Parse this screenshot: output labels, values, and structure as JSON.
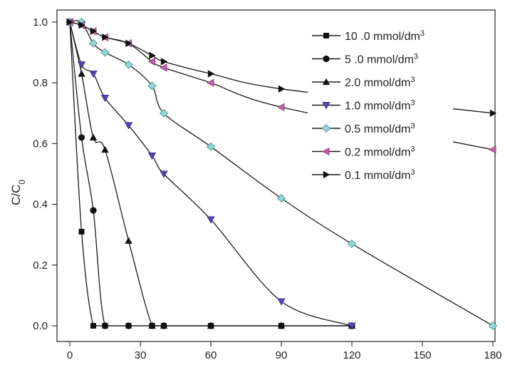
{
  "chart_data": {
    "type": "line",
    "title": "",
    "xlabel": "",
    "ylabel": "C/C",
    "ylabel_sub": "0",
    "xlim": [
      0,
      180
    ],
    "ylim": [
      0,
      1.0
    ],
    "x_ticks": [
      0,
      30,
      60,
      90,
      120,
      150,
      180
    ],
    "y_ticks": [
      0.0,
      0.2,
      0.4,
      0.6,
      0.8,
      1.0
    ],
    "x_tick_labels": [
      "0",
      "30",
      "60",
      "90",
      "120",
      "150",
      "180"
    ],
    "y_tick_labels": [
      "0.0",
      "0.2",
      "0.4",
      "0.6",
      "0.8",
      "1.0"
    ],
    "grid": false,
    "legend_position": "top-right",
    "unit_base": "mmol/dm",
    "unit_exp": "3",
    "series": [
      {
        "name": "10 .0",
        "marker": "square",
        "color": "#111111",
        "points": [
          [
            0,
            1.0
          ],
          [
            5,
            0.31
          ],
          [
            10,
            0.0
          ],
          [
            15,
            0.0
          ],
          [
            25,
            0.0
          ],
          [
            35,
            0.0
          ],
          [
            40,
            0.0
          ],
          [
            60,
            0.0
          ],
          [
            90,
            0.0
          ],
          [
            120,
            0.0
          ]
        ]
      },
      {
        "name": "5 .0",
        "marker": "circle",
        "color": "#111111",
        "points": [
          [
            0,
            1.0
          ],
          [
            5,
            0.62
          ],
          [
            10,
            0.38
          ],
          [
            15,
            0.0
          ],
          [
            25,
            0.0
          ],
          [
            35,
            0.0
          ],
          [
            40,
            0.0
          ],
          [
            60,
            0.0
          ],
          [
            90,
            0.0
          ],
          [
            120,
            0.0
          ]
        ]
      },
      {
        "name": "2.0",
        "marker": "triangle-up",
        "color": "#111111",
        "points": [
          [
            0,
            1.0
          ],
          [
            5,
            0.83
          ],
          [
            10,
            0.62
          ],
          [
            15,
            0.58
          ],
          [
            25,
            0.28
          ],
          [
            35,
            0.0
          ],
          [
            40,
            0.0
          ],
          [
            60,
            0.0
          ],
          [
            90,
            0.0
          ],
          [
            120,
            0.0
          ]
        ]
      },
      {
        "name": "1.0",
        "marker": "triangle-down",
        "color": "#5a3fb0",
        "points": [
          [
            0,
            1.0
          ],
          [
            5,
            0.86
          ],
          [
            10,
            0.83
          ],
          [
            15,
            0.75
          ],
          [
            25,
            0.66
          ],
          [
            35,
            0.56
          ],
          [
            40,
            0.5
          ],
          [
            60,
            0.35
          ],
          [
            90,
            0.08
          ],
          [
            120,
            0.0
          ]
        ]
      },
      {
        "name": "0.5",
        "marker": "diamond",
        "color": "#8fd8d8",
        "points": [
          [
            0,
            1.0
          ],
          [
            5,
            1.0
          ],
          [
            10,
            0.93
          ],
          [
            15,
            0.9
          ],
          [
            25,
            0.86
          ],
          [
            35,
            0.79
          ],
          [
            40,
            0.7
          ],
          [
            60,
            0.59
          ],
          [
            90,
            0.42
          ],
          [
            120,
            0.27
          ],
          [
            180,
            0.0
          ]
        ]
      },
      {
        "name": "0.2",
        "marker": "triangle-left",
        "color": "#c45ca6",
        "points": [
          [
            0,
            1.0
          ],
          [
            5,
            0.99
          ],
          [
            10,
            0.97
          ],
          [
            15,
            0.95
          ],
          [
            25,
            0.93
          ],
          [
            35,
            0.87
          ],
          [
            40,
            0.85
          ],
          [
            60,
            0.8
          ],
          [
            90,
            0.72
          ],
          [
            180,
            0.58
          ]
        ]
      },
      {
        "name": "0.1",
        "marker": "triangle-right",
        "color": "#111111",
        "points": [
          [
            0,
            1.0
          ],
          [
            5,
            0.99
          ],
          [
            10,
            0.97
          ],
          [
            15,
            0.95
          ],
          [
            25,
            0.93
          ],
          [
            35,
            0.89
          ],
          [
            40,
            0.87
          ],
          [
            60,
            0.83
          ],
          [
            90,
            0.78
          ],
          [
            180,
            0.7
          ]
        ]
      }
    ]
  }
}
